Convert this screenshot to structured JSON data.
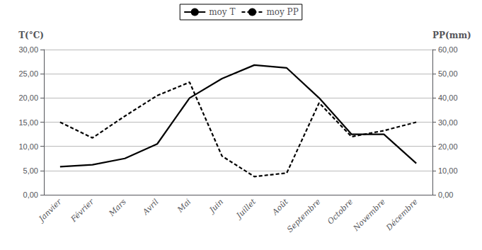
{
  "chart_data": {
    "type": "line",
    "categories": [
      "Janvier",
      "Février",
      "Mars",
      "Avril",
      "Mai",
      "Juin",
      "Juillet",
      "Août",
      "Septembre",
      "Octobre",
      "Novembre",
      "Décembre"
    ],
    "series": [
      {
        "name": "moy T",
        "color": "#000000",
        "line_style": "solid",
        "values": [
          5.8,
          6.2,
          7.5,
          10.5,
          20.0,
          24.0,
          26.8,
          26.2,
          20.0,
          12.5,
          12.5,
          6.5
        ]
      },
      {
        "name": "moy PP",
        "color": "#000000",
        "line_style": "dashed",
        "axis": "y2",
        "values": [
          30.0,
          23.5,
          32.5,
          41.0,
          46.5,
          16.0,
          7.5,
          9.0,
          38.0,
          24.0,
          26.5,
          30.0
        ]
      }
    ],
    "ylabel": "T(°C)",
    "y2label": "PP(mm)",
    "ylim": [
      0,
      30
    ],
    "yticks": [
      {
        "value": 0,
        "label": "0,00"
      },
      {
        "value": 5,
        "label": "5,00"
      },
      {
        "value": 10,
        "label": "10,00"
      },
      {
        "value": 15,
        "label": "15,00"
      },
      {
        "value": 20,
        "label": "20,00"
      },
      {
        "value": 25,
        "label": "25,00"
      },
      {
        "value": 30,
        "label": "30,00"
      }
    ],
    "y2lim": [
      0,
      60
    ],
    "y2ticks": [
      {
        "value": 0,
        "label": "0,00"
      },
      {
        "value": 10,
        "label": "10,00"
      },
      {
        "value": 20,
        "label": "20,00"
      },
      {
        "value": 30,
        "label": "30,00"
      },
      {
        "value": 40,
        "label": "40,00"
      },
      {
        "value": 50,
        "label": "50,00"
      },
      {
        "value": 60,
        "label": "60,00"
      }
    ],
    "grid": true,
    "legend": "top"
  }
}
